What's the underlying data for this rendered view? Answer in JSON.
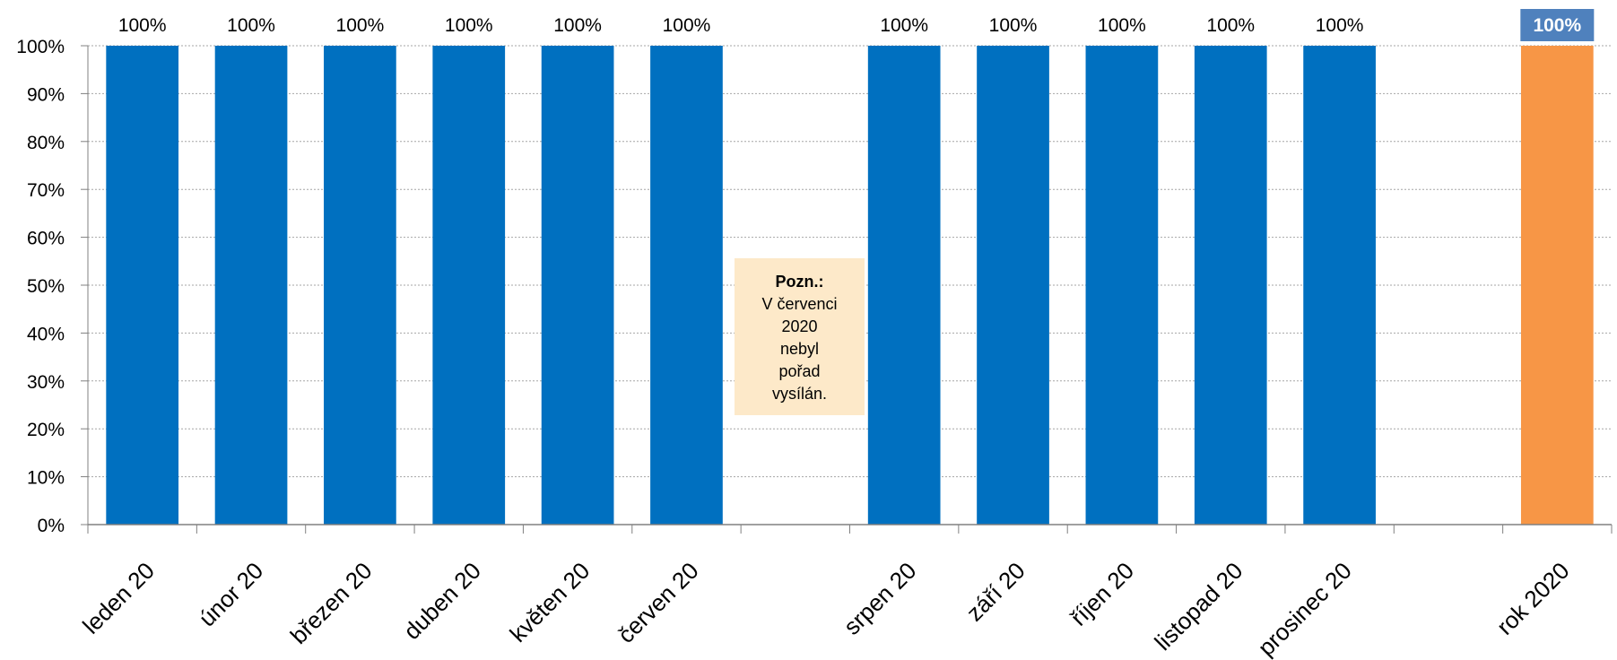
{
  "chart_data": {
    "type": "bar",
    "categories": [
      "leden 20",
      "únor 20",
      "březen 20",
      "duben 20",
      "květen 20",
      "červen 20",
      "",
      "srpen 20",
      "září 20",
      "říjen 20",
      "listopad 20",
      "prosinec 20",
      "",
      "rok 2020"
    ],
    "values": [
      1,
      1,
      1,
      1,
      1,
      1,
      null,
      1,
      1,
      1,
      1,
      1,
      null,
      1
    ],
    "labels": [
      "100%",
      "100%",
      "100%",
      "100%",
      "100%",
      "100%",
      "",
      "100%",
      "100%",
      "100%",
      "100%",
      "100%",
      "",
      "100%"
    ],
    "colors": [
      "#0070c0",
      "#0070c0",
      "#0070c0",
      "#0070c0",
      "#0070c0",
      "#0070c0",
      "",
      "#0070c0",
      "#0070c0",
      "#0070c0",
      "#0070c0",
      "#0070c0",
      "",
      "#f79646"
    ],
    "highlight_label_bg": "#4f81bd",
    "highlight_index": 13,
    "ylim": [
      0,
      1
    ],
    "yticks": [
      "0%",
      "10%",
      "20%",
      "30%",
      "40%",
      "50%",
      "60%",
      "70%",
      "80%",
      "90%",
      "100%"
    ],
    "grid": true,
    "legend": "none",
    "xlabel": "",
    "ylabel": "",
    "title": ""
  },
  "note": {
    "title": "Pozn.:",
    "text": "V červenci\n2020\nnebyl\npořad\nvysílán."
  }
}
